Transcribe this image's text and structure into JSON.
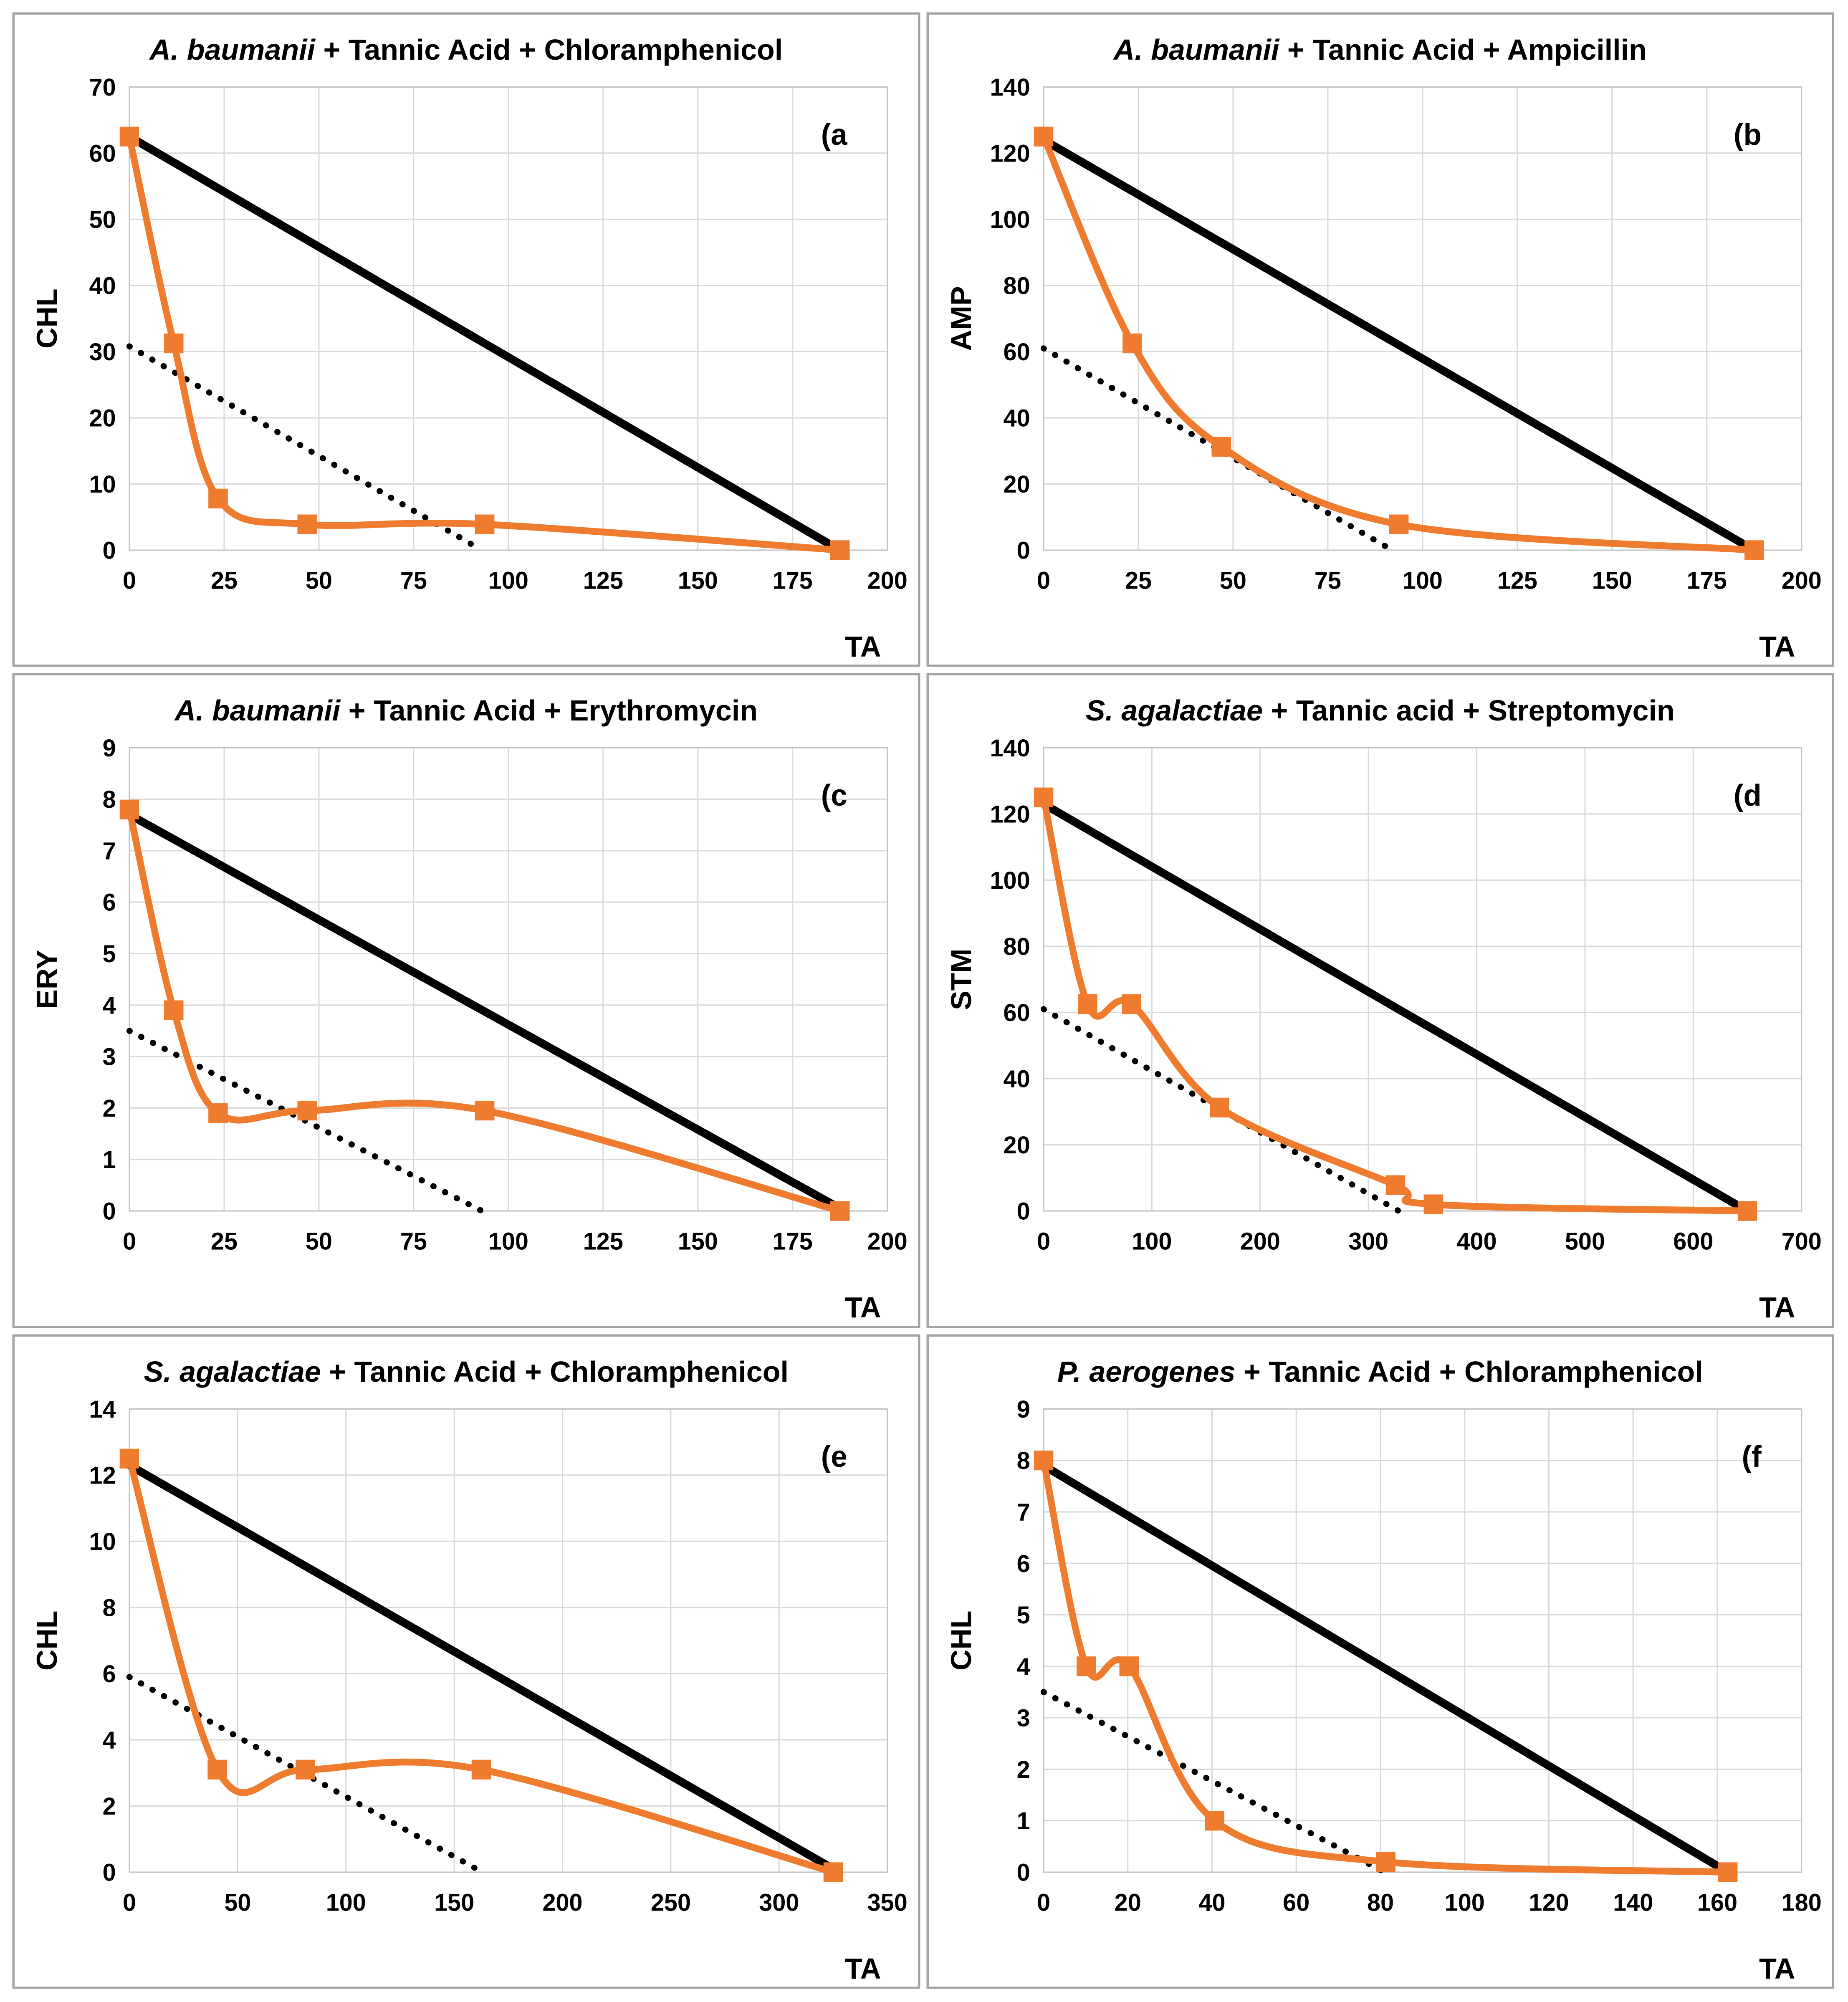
{
  "colors": {
    "orange": "#EF7B2E",
    "line_black": "#000000",
    "gridline": "#D9D9D9",
    "plot_frame": "#C3C3C3",
    "panel_border": "#A4A4A4",
    "text": "#000000",
    "background": "#FFFFFF"
  },
  "chart_data": [
    {
      "id": "a",
      "type": "line",
      "panel_label": "(a",
      "title": "A. baumanii + Tannic Acid + Chloramphenicol",
      "title_italic": "A. baumanii",
      "title_rest": " + Tannic Acid + Chloramphenicol",
      "xlabel": "TA",
      "ylabel": "CHL",
      "xlim": [
        0,
        200
      ],
      "xtick_step": 25,
      "ylim": [
        0,
        70
      ],
      "ytick_step": 10,
      "grid": true,
      "legend": "none",
      "series": [
        {
          "name": "combination-curve",
          "style": "orange-smooth-squares",
          "points": [
            [
              0,
              62.5
            ],
            [
              11.7,
              31.25
            ],
            [
              23.4,
              7.8
            ],
            [
              46.9,
              3.9
            ],
            [
              93.75,
              3.9
            ],
            [
              187.5,
              0
            ]
          ]
        },
        {
          "name": "additivity-line",
          "style": "solid-black",
          "points": [
            [
              0,
              62.5
            ],
            [
              187.5,
              0
            ]
          ]
        },
        {
          "name": "dotted-reference-line",
          "style": "dotted-black",
          "points": [
            [
              0,
              30.8
            ],
            [
              93,
              0
            ]
          ]
        }
      ]
    },
    {
      "id": "b",
      "type": "line",
      "panel_label": "(b",
      "title": "A. baumanii + Tannic Acid + Ampicillin",
      "title_italic": "A. baumanii",
      "title_rest": " + Tannic Acid + Ampicillin",
      "xlabel": "TA",
      "ylabel": "AMP",
      "xlim": [
        0,
        200
      ],
      "xtick_step": 25,
      "ylim": [
        0,
        140
      ],
      "ytick_step": 20,
      "grid": true,
      "legend": "none",
      "series": [
        {
          "name": "combination-curve",
          "style": "orange-smooth-squares",
          "points": [
            [
              0,
              125
            ],
            [
              23.4,
              62.5
            ],
            [
              46.9,
              31.25
            ],
            [
              93.75,
              7.8
            ],
            [
              187.5,
              0
            ]
          ]
        },
        {
          "name": "additivity-line",
          "style": "solid-black",
          "points": [
            [
              0,
              124
            ],
            [
              187.5,
              0
            ]
          ]
        },
        {
          "name": "dotted-reference-line",
          "style": "dotted-black",
          "points": [
            [
              0,
              61
            ],
            [
              92,
              0
            ]
          ]
        }
      ]
    },
    {
      "id": "c",
      "type": "line",
      "panel_label": "(c",
      "title": "A. baumanii + Tannic Acid + Erythromycin",
      "title_italic": "A. baumanii",
      "title_rest": " + Tannic Acid + Erythromycin",
      "xlabel": "TA",
      "ylabel": "ERY",
      "xlim": [
        0,
        200
      ],
      "xtick_step": 25,
      "ylim": [
        0,
        9
      ],
      "ytick_step": 1,
      "grid": true,
      "legend": "none",
      "series": [
        {
          "name": "combination-curve",
          "style": "orange-smooth-squares",
          "points": [
            [
              0,
              7.8
            ],
            [
              11.7,
              3.9
            ],
            [
              23.4,
              1.9
            ],
            [
              46.9,
              1.95
            ],
            [
              93.75,
              1.95
            ],
            [
              187.5,
              0
            ]
          ]
        },
        {
          "name": "additivity-line",
          "style": "solid-black",
          "points": [
            [
              0,
              7.7
            ],
            [
              187.5,
              0.05
            ]
          ]
        },
        {
          "name": "dotted-reference-line",
          "style": "dotted-black",
          "points": [
            [
              0,
              3.5
            ],
            [
              93,
              0
            ]
          ]
        }
      ]
    },
    {
      "id": "d",
      "type": "line",
      "panel_label": "(d",
      "title": "S. agalactiae + Tannic acid + Streptomycin",
      "title_italic": "S. agalactiae",
      "title_rest": " + Tannic acid + Streptomycin",
      "xlabel": "TA",
      "ylabel": "STM",
      "xlim": [
        0,
        700
      ],
      "xtick_step": 100,
      "ylim": [
        0,
        140
      ],
      "ytick_step": 20,
      "grid": true,
      "legend": "none",
      "series": [
        {
          "name": "combination-curve",
          "style": "orange-smooth-squares",
          "points": [
            [
              0,
              125
            ],
            [
              40.6,
              62.5
            ],
            [
              81.25,
              62.5
            ],
            [
              162.5,
              31.25
            ],
            [
              325,
              7.8
            ],
            [
              360,
              2
            ],
            [
              650,
              0
            ]
          ]
        },
        {
          "name": "additivity-line",
          "style": "solid-black",
          "points": [
            [
              0,
              123
            ],
            [
              650,
              0
            ]
          ]
        },
        {
          "name": "dotted-reference-line",
          "style": "dotted-black",
          "points": [
            [
              0,
              61
            ],
            [
              328,
              0
            ]
          ]
        }
      ]
    },
    {
      "id": "e",
      "type": "line",
      "panel_label": "(e",
      "title": "S. agalactiae + Tannic Acid + Chloramphenicol",
      "title_italic": "S. agalactiae",
      "title_rest": " + Tannic Acid + Chloramphenicol",
      "xlabel": "TA",
      "ylabel": "CHL",
      "xlim": [
        0,
        350
      ],
      "xtick_step": 50,
      "ylim": [
        0,
        14
      ],
      "ytick_step": 2,
      "grid": true,
      "legend": "none",
      "series": [
        {
          "name": "combination-curve",
          "style": "orange-smooth-squares",
          "points": [
            [
              0,
              12.5
            ],
            [
              40.6,
              3.1
            ],
            [
              81.25,
              3.1
            ],
            [
              162.5,
              3.1
            ],
            [
              325,
              0
            ]
          ]
        },
        {
          "name": "additivity-line",
          "style": "solid-black",
          "points": [
            [
              0,
              12.3
            ],
            [
              325,
              0.1
            ]
          ]
        },
        {
          "name": "dotted-reference-line",
          "style": "dotted-black",
          "points": [
            [
              0,
              5.9
            ],
            [
              163,
              0
            ]
          ]
        }
      ]
    },
    {
      "id": "f",
      "type": "line",
      "panel_label": "(f",
      "title": "P. aerogenes + Tannic Acid + Chloramphenicol",
      "title_italic": "P. aerogenes",
      "title_rest": " + Tannic Acid + Chloramphenicol",
      "xlabel": "TA",
      "ylabel": "CHL",
      "xlim": [
        0,
        180
      ],
      "xtick_step": 20,
      "ylim": [
        0,
        9
      ],
      "ytick_step": 1,
      "grid": true,
      "legend": "none",
      "series": [
        {
          "name": "combination-curve",
          "style": "orange-smooth-squares",
          "points": [
            [
              0,
              8
            ],
            [
              10.15,
              4
            ],
            [
              20.3,
              4
            ],
            [
              40.6,
              1
            ],
            [
              81.25,
              0.2
            ],
            [
              162.5,
              0
            ]
          ]
        },
        {
          "name": "additivity-line",
          "style": "solid-black",
          "points": [
            [
              0,
              7.9
            ],
            [
              162.5,
              0
            ]
          ]
        },
        {
          "name": "dotted-reference-line",
          "style": "dotted-black",
          "points": [
            [
              0,
              3.5
            ],
            [
              81,
              0
            ]
          ]
        }
      ]
    }
  ]
}
